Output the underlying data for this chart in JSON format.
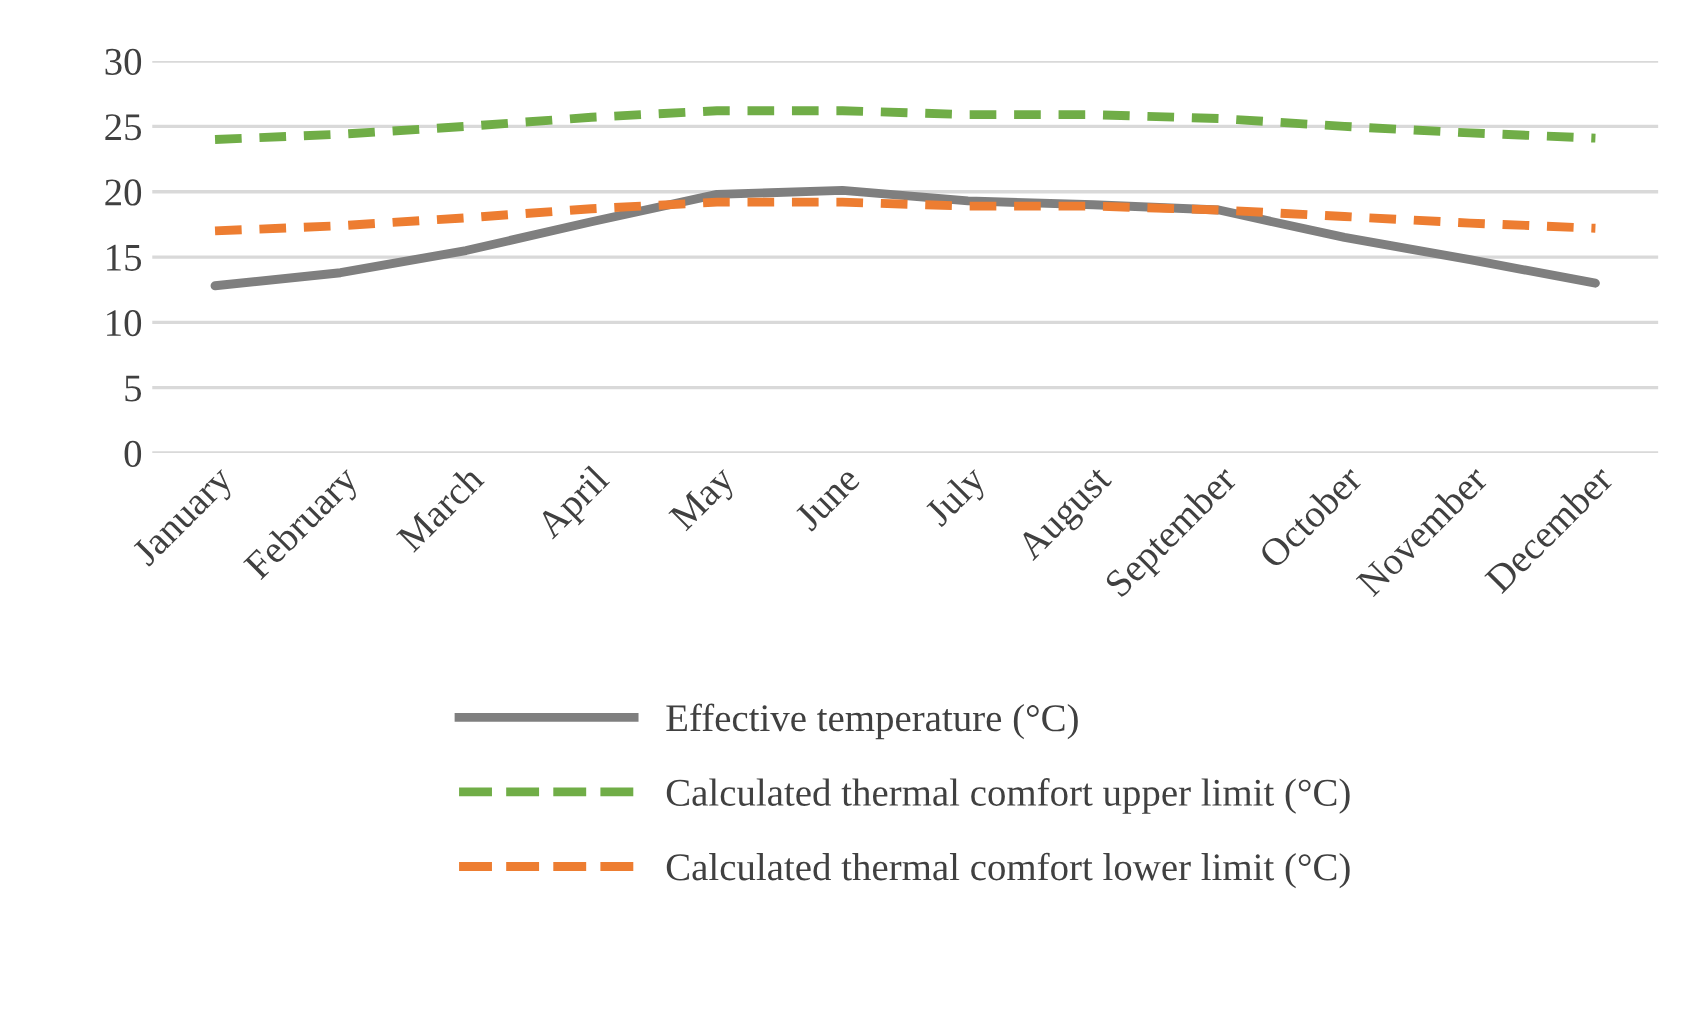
{
  "chart_data": {
    "type": "line",
    "categories": [
      "January",
      "February",
      "March",
      "April",
      "May",
      "June",
      "July",
      "August",
      "September",
      "October",
      "November",
      "December"
    ],
    "series": [
      {
        "name": "Effective temperature (°C)",
        "color": "#7f7f7f",
        "line_style": "solid",
        "values": [
          12.8,
          13.8,
          15.5,
          17.7,
          19.8,
          20.1,
          19.3,
          19.0,
          18.6,
          16.5,
          14.8,
          13.0
        ]
      },
      {
        "name": "Calculated thermal comfort upper limit (°C)",
        "color": "#70ad47",
        "line_style": "dashed",
        "values": [
          24.0,
          24.4,
          25.0,
          25.7,
          26.2,
          26.2,
          25.9,
          25.9,
          25.6,
          25.0,
          24.5,
          24.1
        ]
      },
      {
        "name": "Calculated thermal comfort lower limit (°C)",
        "color": "#ed7d31",
        "line_style": "dashed",
        "values": [
          17.0,
          17.4,
          18.0,
          18.7,
          19.2,
          19.2,
          18.9,
          18.9,
          18.6,
          18.1,
          17.6,
          17.2
        ]
      }
    ],
    "ylim": [
      0,
      30
    ],
    "yticks": [
      0,
      5,
      10,
      15,
      20,
      25,
      30
    ],
    "grid": "y",
    "legend": "bottom",
    "marker": "none"
  }
}
